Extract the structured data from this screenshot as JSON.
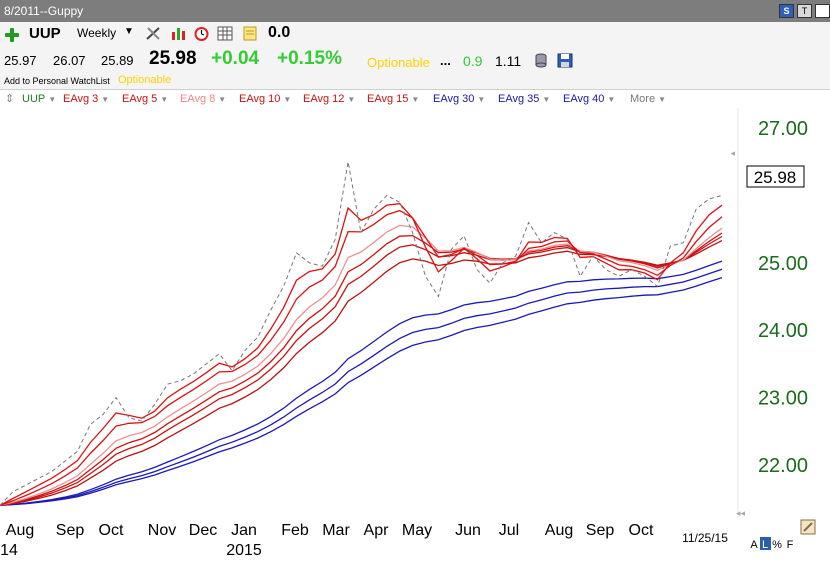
{
  "window": {
    "title": "8/2011--Guppy",
    "controls": {
      "s": "S",
      "t": "T",
      "x": ""
    }
  },
  "quote": {
    "symbol": "UUP",
    "period": "Weekly",
    "change_count": "0.0",
    "open": "25.97",
    "high": "26.07",
    "low": "25.89",
    "last": "25.98",
    "change": "+0.04",
    "change_pct": "+0.15%",
    "optionable": "Optionable",
    "dots": "...",
    "value1": "0.9",
    "value2": "1.11",
    "watchlist_label": "Add to Personal WatchList",
    "optionable2": "Optionable",
    "colors": {
      "up": "#33cc33",
      "optionable": "#ffd200"
    },
    "icons": [
      "plus-icon",
      "tool-icon",
      "bars-icon",
      "clock-icon",
      "grid-icon",
      "note-icon",
      "database-icon",
      "save-icon"
    ]
  },
  "legend": [
    {
      "label": "UUP",
      "color": "#1a7f1a"
    },
    {
      "label": "EAvg 3",
      "color": "#cc1111"
    },
    {
      "label": "EAvg 5",
      "color": "#cc1111"
    },
    {
      "label": "EAvg 8",
      "color": "#ee8888"
    },
    {
      "label": "EAvg 10",
      "color": "#cc1111"
    },
    {
      "label": "EAvg 12",
      "color": "#cc1111"
    },
    {
      "label": "EAvg 15",
      "color": "#cc1111"
    },
    {
      "label": "EAvg 30",
      "color": "#1a1aaa"
    },
    {
      "label": "EAvg 35",
      "color": "#1a1aaa"
    },
    {
      "label": "EAvg 40",
      "color": "#1a1aaa"
    },
    {
      "label": "More",
      "color": "#777777"
    }
  ],
  "chart_data": {
    "type": "line",
    "ylim": [
      21.3,
      27.3
    ],
    "y_ticks": [
      22.0,
      23.0,
      24.0,
      25.0,
      26.0,
      27.0
    ],
    "y_tick_labels": [
      "22.00",
      "23.00",
      "24.00",
      "25.00",
      "",
      "27.00"
    ],
    "last_price_label": "25.98",
    "x_labels": [
      "Aug",
      "Sep",
      "Oct",
      "Nov",
      "Dec",
      "Jan",
      "Feb",
      "Mar",
      "Apr",
      "May",
      "Jun",
      "Jul",
      "Aug",
      "Sep",
      "Oct"
    ],
    "x_sub_labels": [
      "14",
      "2015"
    ],
    "date_label": "11/25/15",
    "footer_controls": [
      "A",
      "L",
      "%",
      "F"
    ],
    "grid": false,
    "price_series": {
      "name": "UUP",
      "values": [
        21.4,
        21.6,
        21.7,
        21.8,
        21.9,
        22.05,
        22.2,
        22.6,
        22.75,
        23.0,
        22.7,
        22.65,
        22.9,
        23.2,
        23.25,
        23.35,
        23.5,
        23.65,
        23.4,
        23.7,
        23.9,
        24.3,
        24.65,
        25.15,
        25.0,
        24.95,
        25.35,
        26.5,
        25.45,
        25.8,
        26.0,
        25.9,
        25.45,
        24.8,
        24.5,
        25.2,
        25.4,
        24.9,
        24.7,
        25.0,
        25.1,
        25.6,
        25.3,
        25.45,
        25.35,
        24.8,
        25.1,
        24.9,
        24.8,
        24.9,
        24.8,
        24.65,
        25.25,
        25.3,
        25.8,
        25.95,
        26.0
      ]
    },
    "ema_periods": [
      3,
      5,
      8,
      10,
      12,
      15,
      30,
      35,
      40
    ],
    "ema_colors": [
      "#dd1111",
      "#dd1111",
      "#ee9090",
      "#cc1111",
      "#cc1111",
      "#bb1111",
      "#1a1ab8",
      "#1a1ab8",
      "#1a1ab8"
    ]
  }
}
